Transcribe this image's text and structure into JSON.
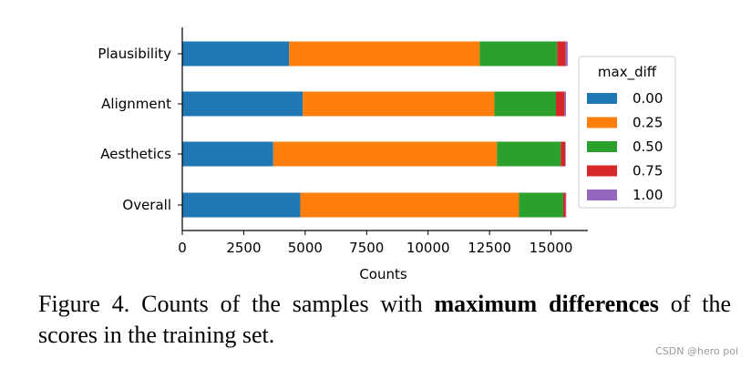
{
  "chart_data": {
    "type": "bar",
    "orientation": "horizontal",
    "stacked": true,
    "categories": [
      "Plausibility",
      "Alignment",
      "Aesthetics",
      "Overall"
    ],
    "series": [
      {
        "name": "0.00",
        "color": "#1f77b4",
        "values": [
          4350,
          4900,
          3700,
          4800
        ]
      },
      {
        "name": "0.25",
        "color": "#ff7f0e",
        "values": [
          7750,
          7800,
          9100,
          8900
        ]
      },
      {
        "name": "0.50",
        "color": "#2ca02c",
        "values": [
          3150,
          2500,
          2600,
          1800
        ]
      },
      {
        "name": "0.75",
        "color": "#d62728",
        "values": [
          350,
          350,
          180,
          100
        ]
      },
      {
        "name": "1.00",
        "color": "#9467bd",
        "values": [
          80,
          60,
          20,
          20
        ]
      }
    ],
    "xlabel": "Counts",
    "ylabel": "",
    "xlim": [
      0,
      16500
    ],
    "xticks": [
      0,
      2500,
      5000,
      7500,
      10000,
      12500,
      15000
    ],
    "xtick_labels": [
      "0",
      "2500",
      "5000",
      "7500",
      "10000",
      "12500",
      "15000"
    ],
    "legend_title": "max_diff",
    "legend_position": "right"
  },
  "caption": {
    "prefix": "Figure 4.  Counts of the samples with ",
    "bold": "maximum differences",
    "suffix": " of the scores in the training set."
  },
  "watermark": "CSDN @hero poi"
}
